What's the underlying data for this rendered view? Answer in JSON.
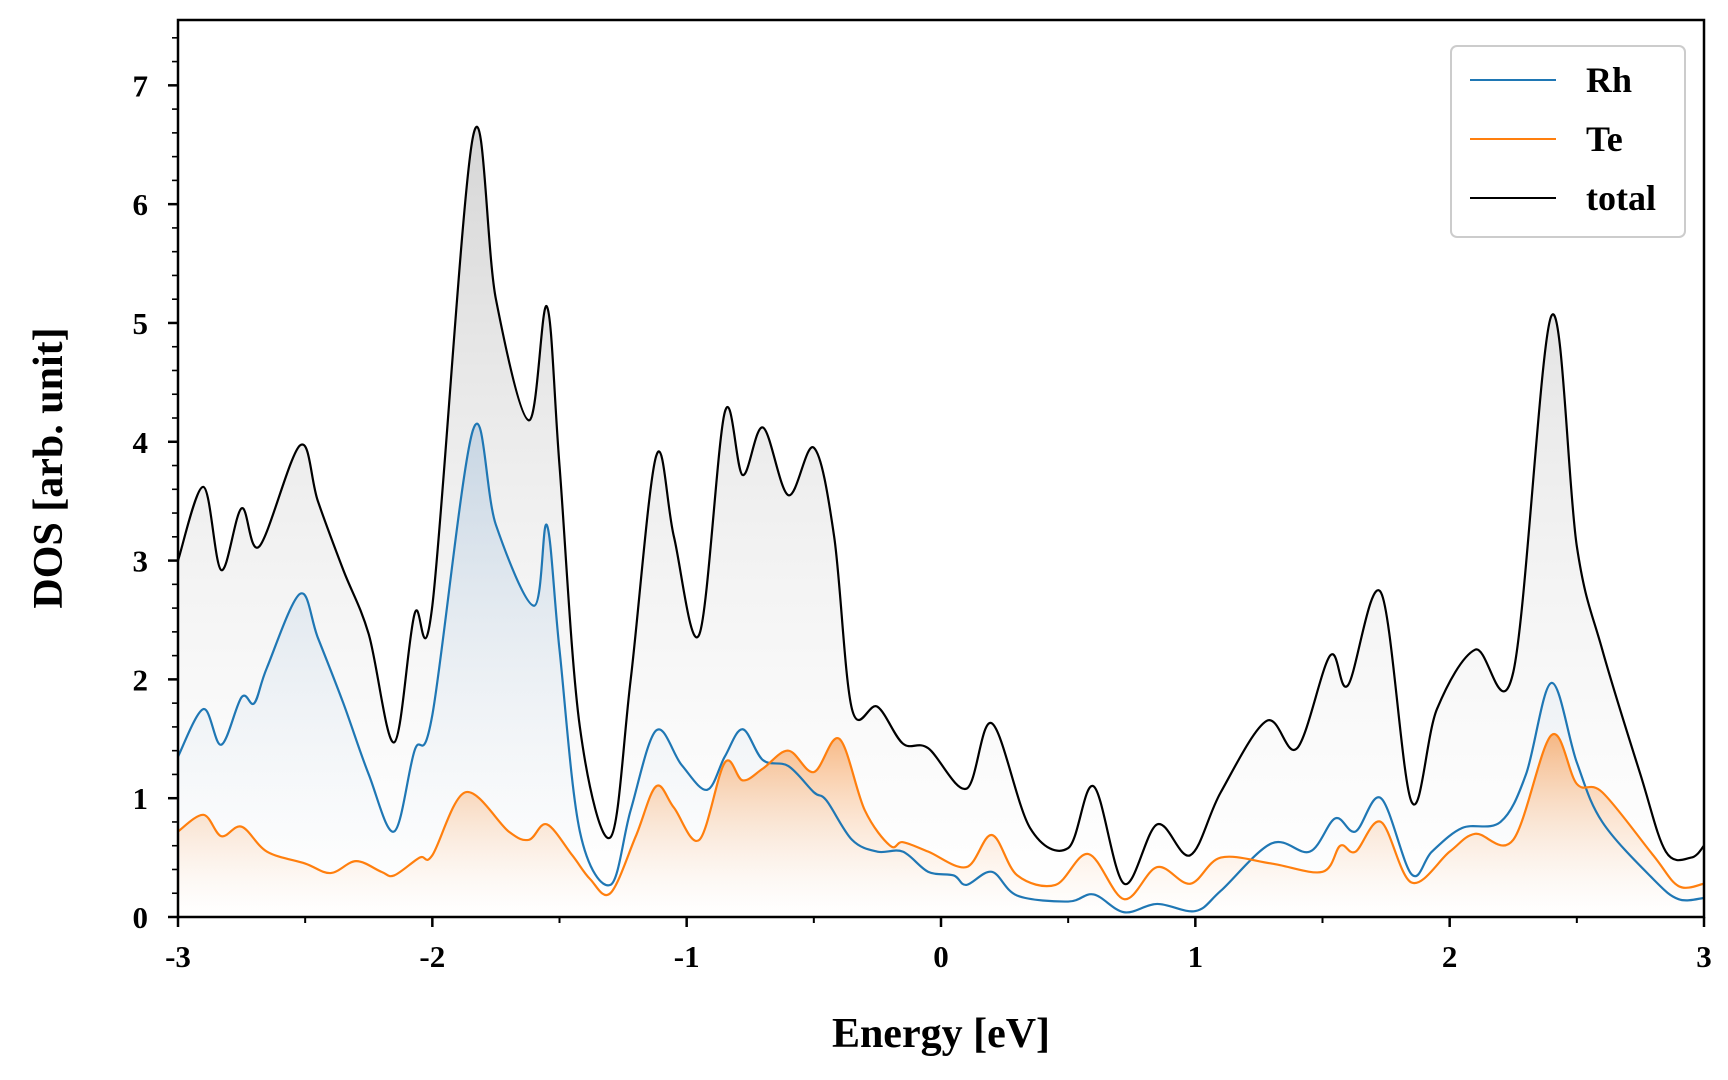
{
  "chart_data": {
    "type": "line",
    "title": "",
    "xlabel": "Energy [eV]",
    "ylabel": "DOS [arb. unit]",
    "xlim": [
      -3,
      3
    ],
    "ylim": [
      0,
      7.55
    ],
    "xticks": [
      -3,
      -2,
      -1,
      0,
      1,
      2,
      3
    ],
    "xtick_labels": [
      "-3",
      "-2",
      "-1",
      "0",
      "1",
      "2",
      "3"
    ],
    "yticks": [
      0,
      1,
      2,
      3,
      4,
      5,
      6,
      7
    ],
    "ytick_labels": [
      "0",
      "1",
      "2",
      "3",
      "4",
      "5",
      "6",
      "7"
    ],
    "grid": false,
    "legend_position": "top-right",
    "fill_under_curves": true,
    "series": [
      {
        "name": "Rh",
        "color": "#1f77b4",
        "x": [
          -3.0,
          -2.9,
          -2.83,
          -2.75,
          -2.7,
          -2.65,
          -2.52,
          -2.45,
          -2.35,
          -2.25,
          -2.15,
          -2.07,
          -2.0,
          -1.84,
          -1.75,
          -1.6,
          -1.55,
          -1.5,
          -1.42,
          -1.3,
          -1.22,
          -1.12,
          -1.02,
          -0.92,
          -0.85,
          -0.78,
          -0.7,
          -0.6,
          -0.5,
          -0.45,
          -0.35,
          -0.25,
          -0.15,
          -0.05,
          0.05,
          0.1,
          0.2,
          0.3,
          0.5,
          0.6,
          0.72,
          0.85,
          1.0,
          1.1,
          1.3,
          1.45,
          1.55,
          1.63,
          1.73,
          1.85,
          1.93,
          2.05,
          2.2,
          2.3,
          2.4,
          2.5,
          2.6,
          2.8,
          2.9,
          3.0
        ],
        "y": [
          1.35,
          1.75,
          1.45,
          1.85,
          1.8,
          2.1,
          2.72,
          2.35,
          1.8,
          1.2,
          0.72,
          1.4,
          1.7,
          4.1,
          3.3,
          2.62,
          3.3,
          2.25,
          0.72,
          0.27,
          0.9,
          1.57,
          1.28,
          1.07,
          1.35,
          1.58,
          1.32,
          1.27,
          1.05,
          0.98,
          0.65,
          0.55,
          0.55,
          0.38,
          0.35,
          0.27,
          0.38,
          0.18,
          0.13,
          0.19,
          0.04,
          0.11,
          0.05,
          0.22,
          0.62,
          0.55,
          0.83,
          0.72,
          1.0,
          0.36,
          0.55,
          0.75,
          0.8,
          1.2,
          1.97,
          1.3,
          0.8,
          0.32,
          0.15,
          0.16
        ]
      },
      {
        "name": "Te",
        "color": "#ff7f0e",
        "x": [
          -3.0,
          -2.9,
          -2.83,
          -2.75,
          -2.65,
          -2.5,
          -2.4,
          -2.3,
          -2.2,
          -2.15,
          -2.05,
          -2.0,
          -1.87,
          -1.7,
          -1.62,
          -1.55,
          -1.45,
          -1.38,
          -1.3,
          -1.2,
          -1.12,
          -1.05,
          -0.95,
          -0.85,
          -0.78,
          -0.7,
          -0.6,
          -0.5,
          -0.4,
          -0.3,
          -0.2,
          -0.15,
          -0.05,
          0.1,
          0.2,
          0.3,
          0.45,
          0.58,
          0.72,
          0.85,
          0.98,
          1.1,
          1.3,
          1.5,
          1.57,
          1.63,
          1.73,
          1.85,
          2.0,
          2.1,
          2.25,
          2.4,
          2.5,
          2.6,
          2.8,
          2.9,
          3.0
        ],
        "y": [
          0.72,
          0.86,
          0.68,
          0.76,
          0.55,
          0.45,
          0.37,
          0.47,
          0.38,
          0.35,
          0.5,
          0.52,
          1.05,
          0.72,
          0.65,
          0.78,
          0.52,
          0.32,
          0.2,
          0.68,
          1.1,
          0.92,
          0.65,
          1.3,
          1.15,
          1.25,
          1.4,
          1.22,
          1.5,
          0.9,
          0.6,
          0.63,
          0.55,
          0.42,
          0.69,
          0.35,
          0.27,
          0.53,
          0.15,
          0.42,
          0.28,
          0.5,
          0.45,
          0.38,
          0.6,
          0.55,
          0.8,
          0.29,
          0.55,
          0.7,
          0.65,
          1.53,
          1.12,
          1.05,
          0.52,
          0.26,
          0.28
        ]
      },
      {
        "name": "total",
        "color": "#000000",
        "x": [
          -3.0,
          -2.9,
          -2.83,
          -2.75,
          -2.68,
          -2.52,
          -2.45,
          -2.35,
          -2.25,
          -2.15,
          -2.07,
          -2.0,
          -1.84,
          -1.75,
          -1.62,
          -1.55,
          -1.5,
          -1.42,
          -1.3,
          -1.22,
          -1.12,
          -1.05,
          -0.95,
          -0.85,
          -0.78,
          -0.7,
          -0.6,
          -0.5,
          -0.42,
          -0.35,
          -0.25,
          -0.15,
          -0.05,
          0.1,
          0.2,
          0.35,
          0.5,
          0.6,
          0.72,
          0.85,
          0.98,
          1.1,
          1.28,
          1.4,
          1.53,
          1.6,
          1.73,
          1.85,
          1.95,
          2.1,
          2.25,
          2.4,
          2.5,
          2.6,
          2.75,
          2.85,
          2.95,
          3.0
        ],
        "y": [
          3.0,
          3.62,
          2.92,
          3.44,
          3.12,
          3.97,
          3.5,
          2.92,
          2.38,
          1.47,
          2.55,
          2.62,
          6.57,
          5.2,
          4.18,
          5.14,
          3.8,
          1.6,
          0.67,
          2.0,
          3.88,
          3.2,
          2.38,
          4.25,
          3.72,
          4.12,
          3.55,
          3.95,
          3.2,
          1.75,
          1.77,
          1.46,
          1.42,
          1.08,
          1.63,
          0.75,
          0.58,
          1.1,
          0.28,
          0.78,
          0.52,
          1.05,
          1.65,
          1.42,
          2.2,
          1.95,
          2.73,
          0.97,
          1.75,
          2.25,
          2.06,
          5.06,
          3.12,
          2.25,
          1.2,
          0.55,
          0.5,
          0.6
        ]
      }
    ]
  }
}
